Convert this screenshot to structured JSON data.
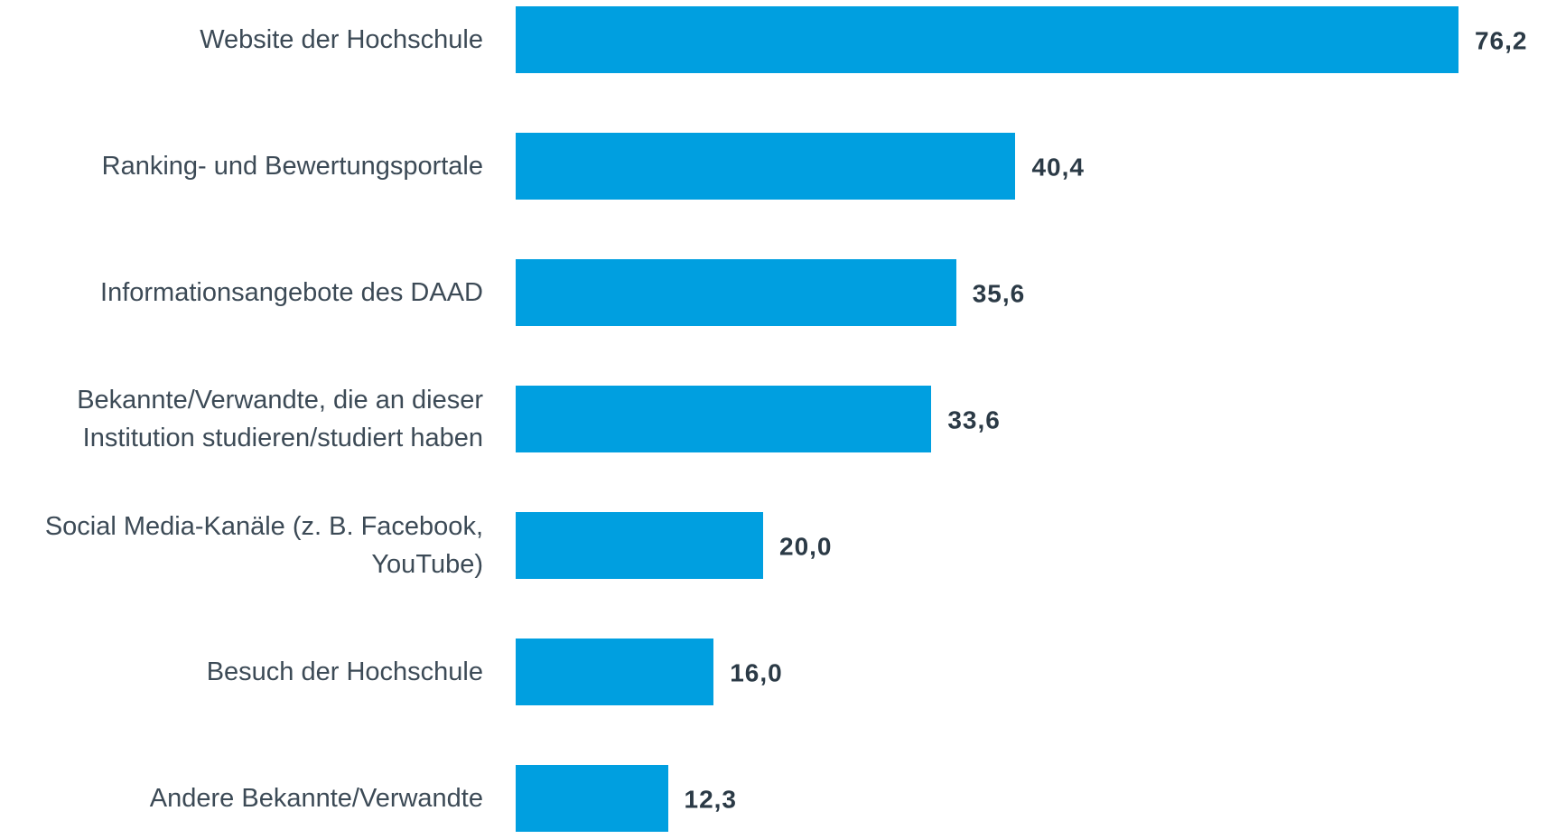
{
  "chart_data": {
    "type": "bar",
    "orientation": "horizontal",
    "categories": [
      "Website der Hochschule",
      "Ranking- und Bewertungsportale",
      "Informationsangebote des DAAD",
      "Bekannte/Verwandte, die an dieser\nInstitution studieren/studiert haben",
      "Social Media-Kanäle (z. B. Facebook,\nYouTube)",
      "Besuch der Hochschule",
      "Andere Bekannte/Verwandte"
    ],
    "values": [
      76.2,
      40.4,
      35.6,
      33.6,
      20.0,
      16.0,
      12.3
    ],
    "value_labels": [
      "76,2",
      "40,4",
      "35,6",
      "33,6",
      "20,0",
      "16,0",
      "12,3"
    ],
    "color": "#009fe0"
  }
}
